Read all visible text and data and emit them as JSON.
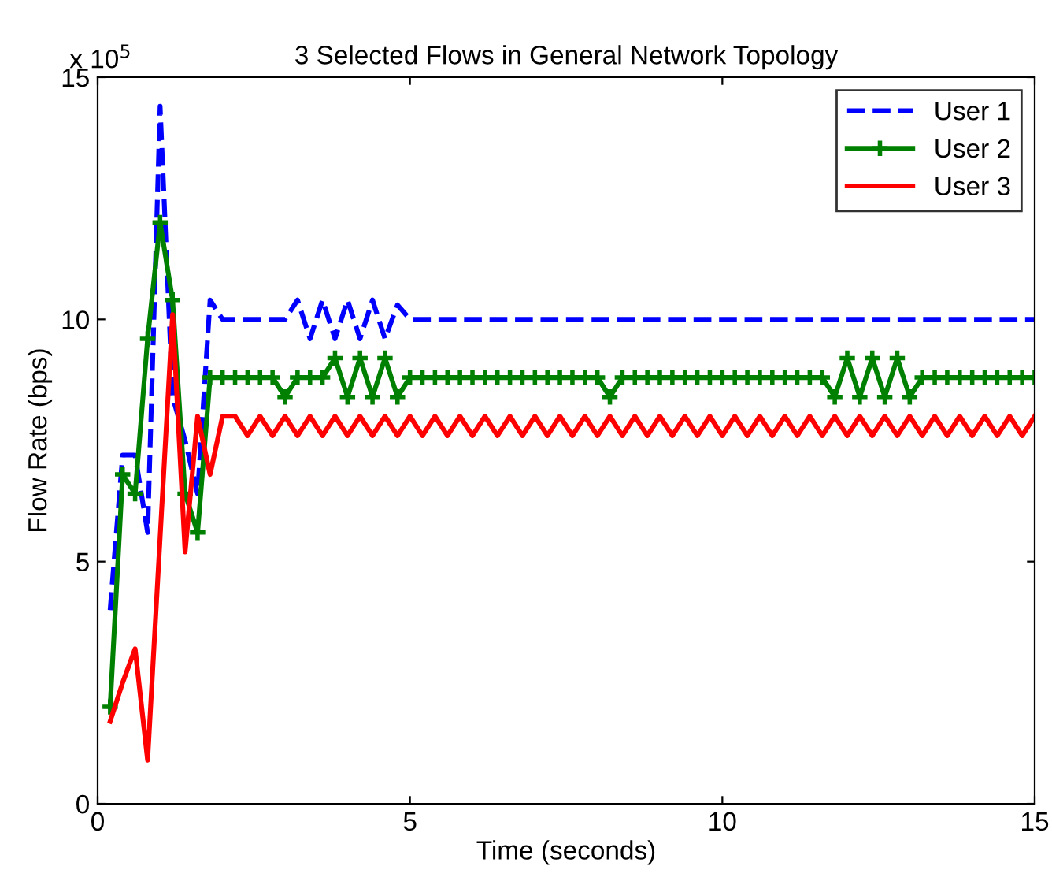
{
  "chart_data": {
    "type": "line",
    "title": "3 Selected Flows in General Network Topology",
    "xlabel": "Time (seconds)",
    "ylabel": "Flow Rate (bps)",
    "annotations": [
      "x 10$^{5}$"
    ],
    "x": [
      0.2,
      0.4,
      0.6,
      0.8,
      1.0,
      1.2,
      1.4,
      1.6,
      1.8,
      2.0,
      2.2,
      2.4,
      2.6,
      2.8,
      3.0,
      3.2,
      3.4,
      3.6,
      3.8,
      4.0,
      4.2,
      4.4,
      4.6,
      4.8,
      5.0,
      5.2,
      5.4,
      5.6,
      5.8,
      6.0,
      6.2,
      6.4,
      6.6,
      6.8,
      7.0,
      7.2,
      7.4,
      7.6,
      7.8,
      8.0,
      8.2,
      8.4,
      8.6,
      8.8,
      9.0,
      9.2,
      9.4,
      9.6,
      9.8,
      10.0,
      10.2,
      10.4,
      10.6,
      10.8,
      11.0,
      11.2,
      11.4,
      11.6,
      11.8,
      12.0,
      12.2,
      12.4,
      12.6,
      12.8,
      13.0,
      13.2,
      13.4,
      13.6,
      13.8,
      14.0,
      14.2,
      14.4,
      14.6,
      14.8,
      15.0
    ],
    "series": [
      {
        "name": "User 1",
        "color": "#0000ff",
        "line_style": "dashed",
        "marker": "none",
        "values": [
          4.0,
          7.2,
          7.2,
          5.6,
          14.4,
          8.4,
          7.5,
          6.4,
          10.4,
          10.0,
          10.0,
          10.0,
          10.0,
          10.0,
          10.0,
          10.4,
          9.6,
          10.4,
          9.6,
          10.4,
          9.6,
          10.4,
          9.6,
          10.3,
          10.0,
          10.0,
          10.0,
          10.0,
          10.0,
          10.0,
          10.0,
          10.0,
          10.0,
          10.0,
          10.0,
          10.0,
          10.0,
          10.0,
          10.0,
          10.0,
          10.0,
          10.0,
          10.0,
          10.0,
          10.0,
          10.0,
          10.0,
          10.0,
          10.0,
          10.0,
          10.0,
          10.0,
          10.0,
          10.0,
          10.0,
          10.0,
          10.0,
          10.0,
          10.0,
          10.0,
          10.0,
          10.0,
          10.0,
          10.0,
          10.0,
          10.0,
          10.0,
          10.0,
          10.0,
          10.0,
          10.0,
          10.0,
          10.0,
          10.0,
          10.0
        ]
      },
      {
        "name": "User 2",
        "color": "#008000",
        "line_style": "solid",
        "marker": "cross",
        "values": [
          2.0,
          6.8,
          6.4,
          9.6,
          12.0,
          10.4,
          6.4,
          5.6,
          8.8,
          8.8,
          8.8,
          8.8,
          8.8,
          8.8,
          8.4,
          8.8,
          8.8,
          8.8,
          9.2,
          8.4,
          9.2,
          8.4,
          9.2,
          8.4,
          8.8,
          8.8,
          8.8,
          8.8,
          8.8,
          8.8,
          8.8,
          8.8,
          8.8,
          8.8,
          8.8,
          8.8,
          8.8,
          8.8,
          8.8,
          8.8,
          8.4,
          8.8,
          8.8,
          8.8,
          8.8,
          8.8,
          8.8,
          8.8,
          8.8,
          8.8,
          8.8,
          8.8,
          8.8,
          8.8,
          8.8,
          8.8,
          8.8,
          8.8,
          8.4,
          9.2,
          8.4,
          9.2,
          8.4,
          9.2,
          8.4,
          8.8,
          8.8,
          8.8,
          8.8,
          8.8,
          8.8,
          8.8,
          8.8,
          8.8,
          8.8
        ]
      },
      {
        "name": "User 3",
        "color": "#ff0000",
        "line_style": "solid",
        "marker": "none",
        "values": [
          1.7,
          2.5,
          3.2,
          0.9,
          5.5,
          10.1,
          5.2,
          8.0,
          6.8,
          8.0,
          8.0,
          7.6,
          8.0,
          7.6,
          8.0,
          7.6,
          8.0,
          7.6,
          8.0,
          7.6,
          8.0,
          7.6,
          8.0,
          7.6,
          8.0,
          7.6,
          8.0,
          7.6,
          8.0,
          7.6,
          8.0,
          7.6,
          8.0,
          7.6,
          8.0,
          7.6,
          8.0,
          7.6,
          8.0,
          7.6,
          8.0,
          7.6,
          8.0,
          7.6,
          8.0,
          7.6,
          8.0,
          7.6,
          8.0,
          7.6,
          8.0,
          7.6,
          8.0,
          7.6,
          8.0,
          7.6,
          8.0,
          7.6,
          8.0,
          7.6,
          8.0,
          7.6,
          8.0,
          7.6,
          8.0,
          7.6,
          8.0,
          7.6,
          8.0,
          7.6,
          8.0,
          7.6,
          8.0,
          7.6,
          8.0
        ]
      }
    ],
    "xlim": [
      0,
      15
    ],
    "ylim": [
      0,
      15
    ],
    "xticks": [
      0,
      5,
      10,
      15
    ],
    "yticks": [
      0,
      5,
      10,
      15
    ],
    "legend": "top right"
  }
}
